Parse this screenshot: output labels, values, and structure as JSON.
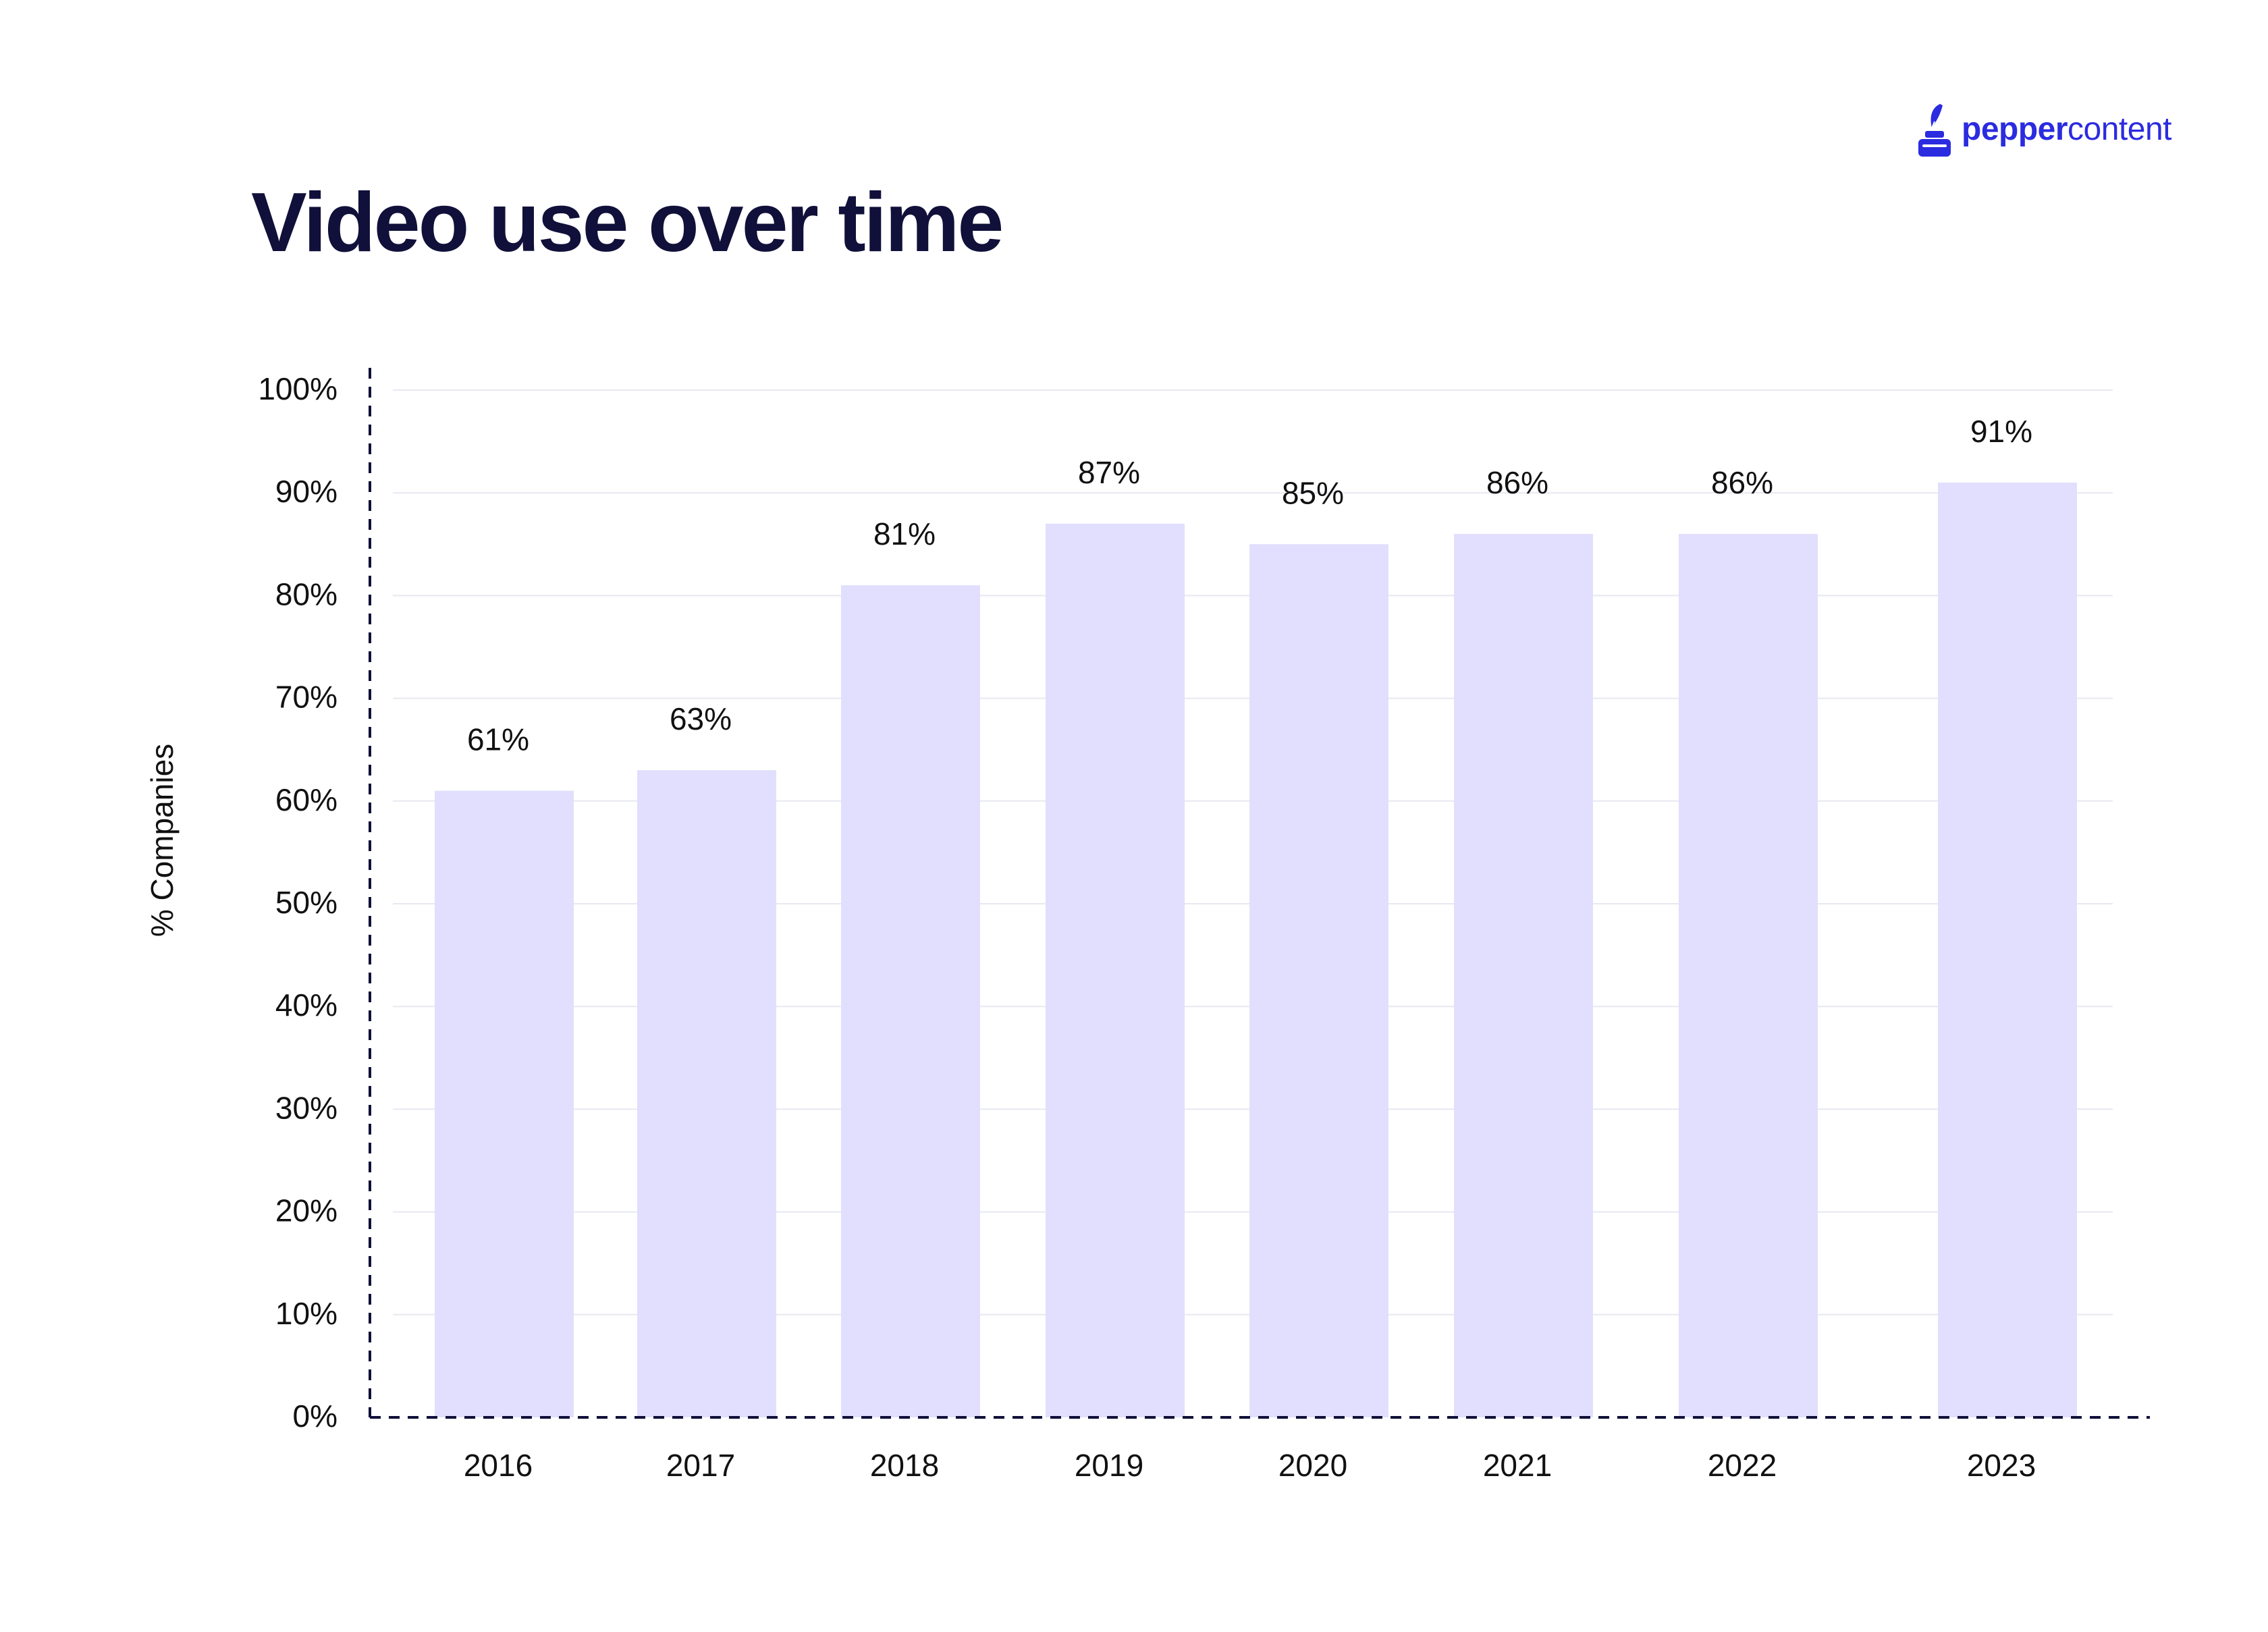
{
  "brand": {
    "name_bold": "pepper",
    "name_light": "content",
    "color": "#2b2be0"
  },
  "chart_data": {
    "type": "bar",
    "title": "Video use over time",
    "ylabel": "% Companies",
    "xlabel": "",
    "categories": [
      "2016",
      "2017",
      "2018",
      "2019",
      "2020",
      "2021",
      "2022",
      "2023"
    ],
    "values": [
      61,
      63,
      81,
      87,
      85,
      86,
      86,
      91
    ],
    "data_labels": [
      "61%",
      "63%",
      "81%",
      "87%",
      "85%",
      "86%",
      "86%",
      "91%"
    ],
    "ylim": [
      0,
      100
    ],
    "yticks": [
      0,
      10,
      20,
      30,
      40,
      50,
      60,
      70,
      80,
      90,
      100
    ],
    "ytick_labels": [
      "0%",
      "10%",
      "20%",
      "30%",
      "40%",
      "50%",
      "60%",
      "70%",
      "80%",
      "90%",
      "100%"
    ],
    "grid": true,
    "bar_color": "#e1dffd",
    "grid_color": "#e8e8f2",
    "axis_color": "#10103a"
  }
}
